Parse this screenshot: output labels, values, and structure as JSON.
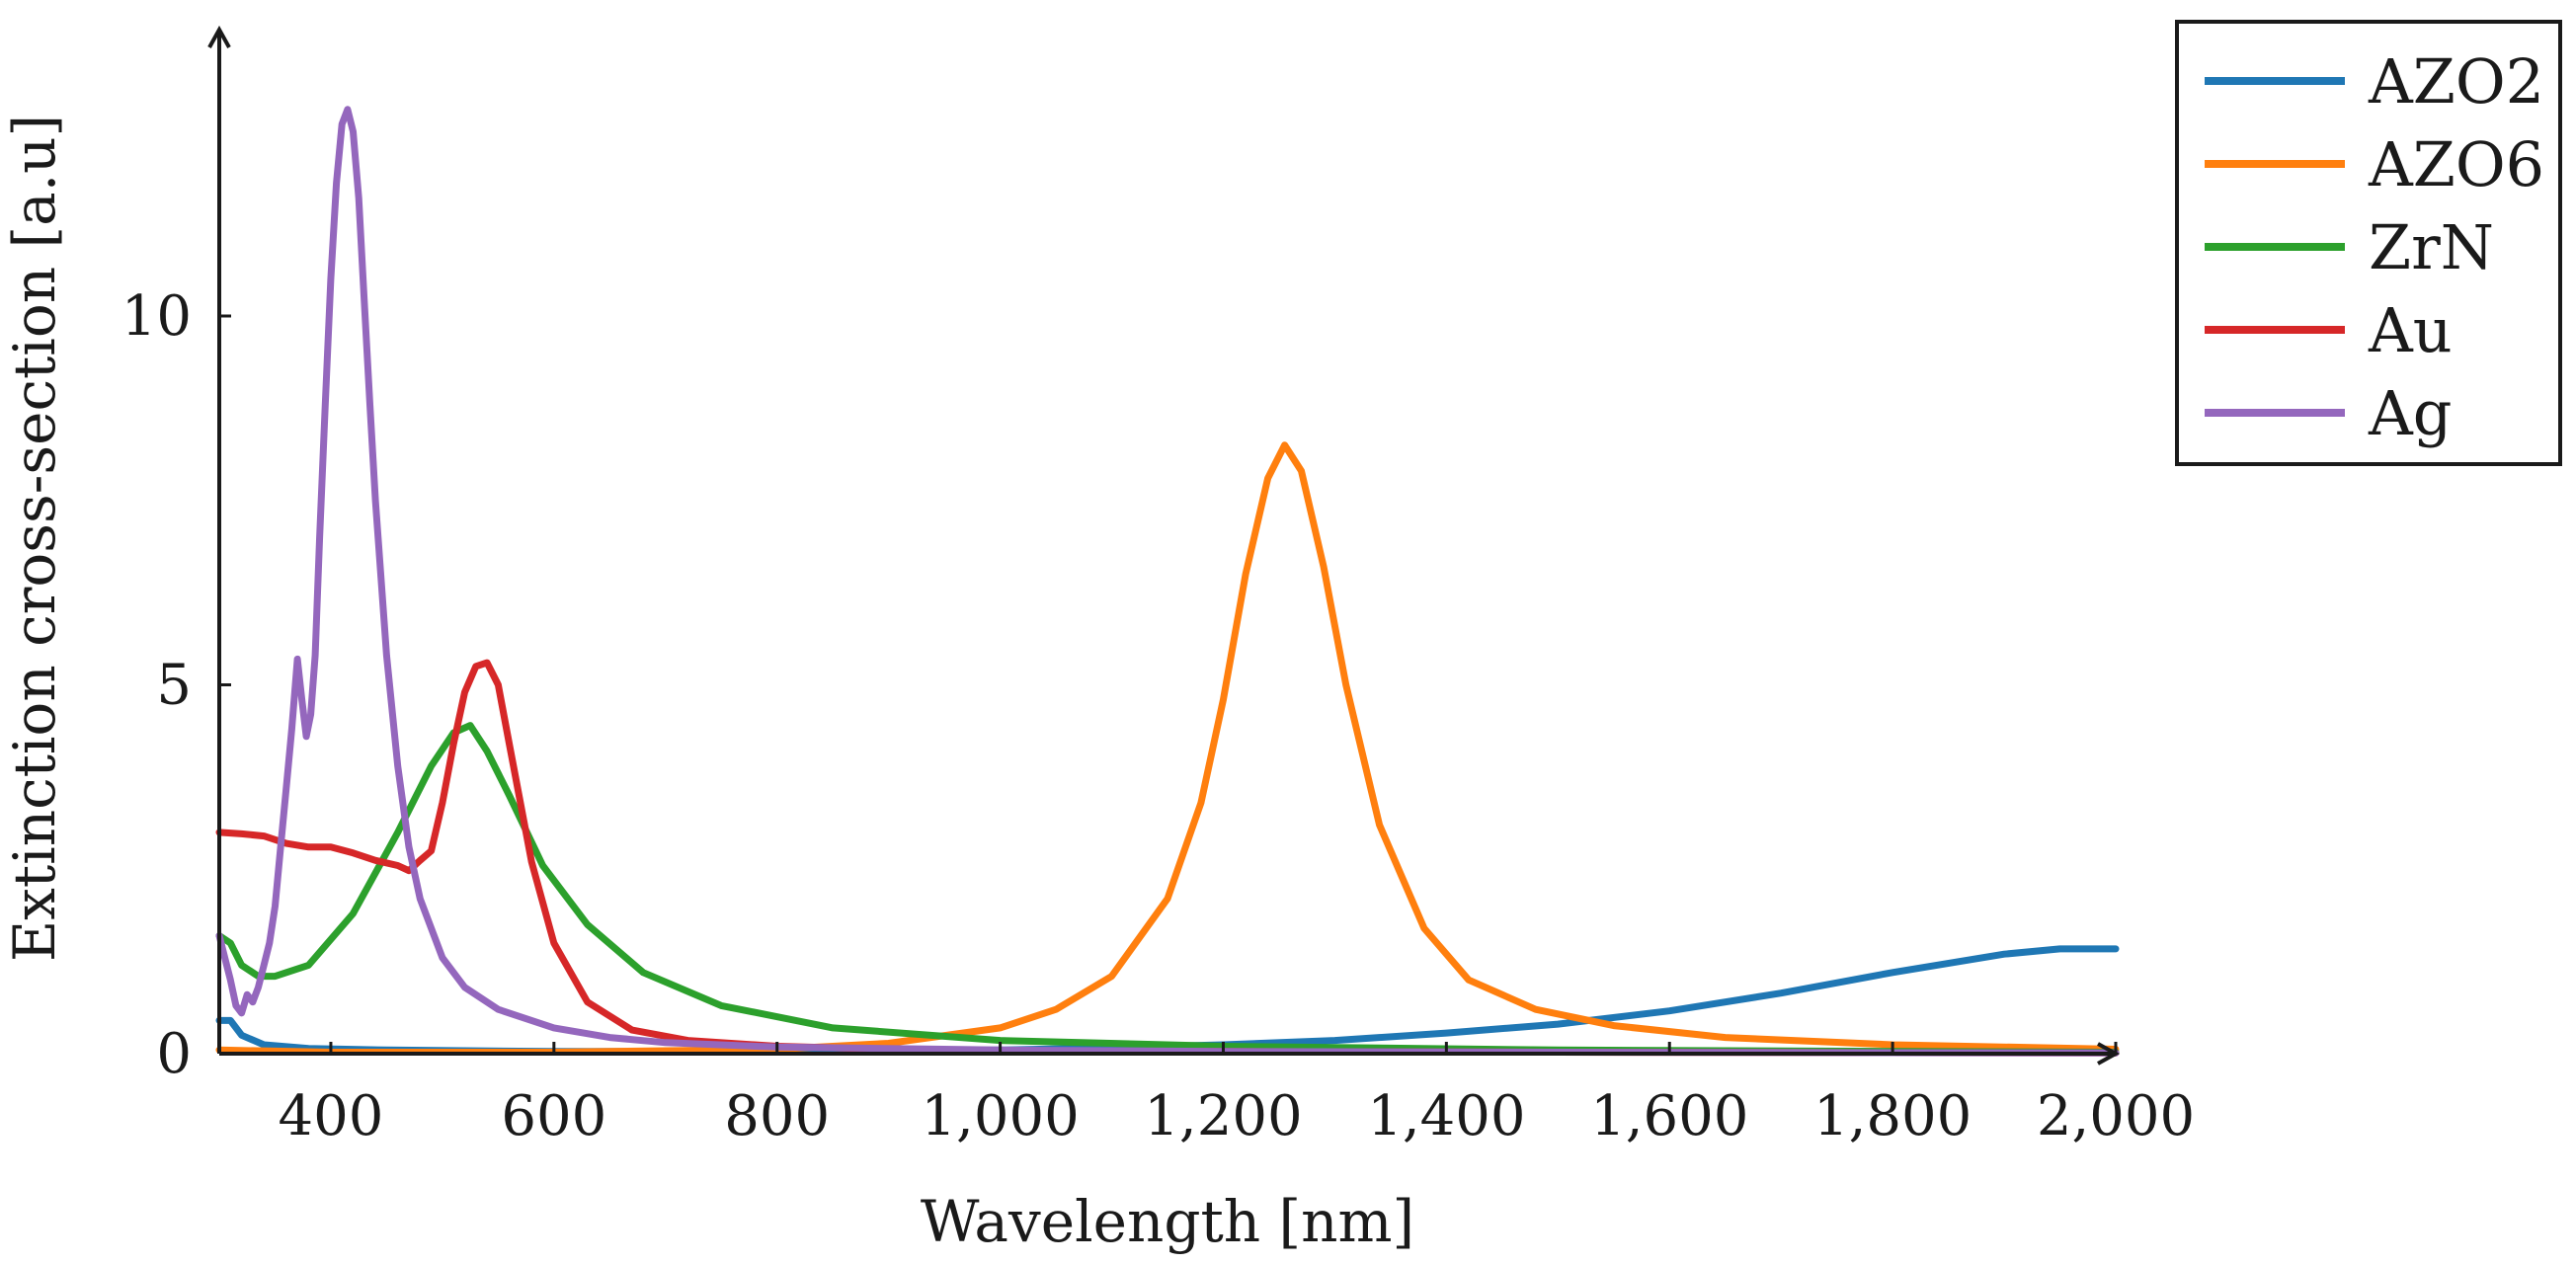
{
  "chart_data": {
    "type": "line",
    "title": "",
    "xlabel": "Wavelength [nm]",
    "ylabel": "Extinction cross-section [a.u]",
    "xlim": [
      300,
      2000
    ],
    "ylim": [
      0,
      13.5
    ],
    "xticks": [
      400,
      600,
      800,
      1000,
      1200,
      1400,
      1600,
      1800,
      2000
    ],
    "xtick_labels": [
      "400",
      "600",
      "800",
      "1,000",
      "1,200",
      "1,400",
      "1,600",
      "1,800",
      "2,000"
    ],
    "yticks": [
      0,
      5,
      10
    ],
    "ytick_labels": [
      "0",
      "5",
      "10"
    ],
    "grid": false,
    "legend_position": "top-right outside",
    "series": [
      {
        "name": "AZO2",
        "color": "#1f77b4",
        "x": [
          300,
          310,
          320,
          340,
          380,
          450,
          600,
          800,
          1000,
          1100,
          1200,
          1300,
          1400,
          1500,
          1600,
          1700,
          1800,
          1900,
          1950,
          2000
        ],
        "y": [
          0.45,
          0.45,
          0.25,
          0.12,
          0.07,
          0.05,
          0.03,
          0.03,
          0.05,
          0.08,
          0.12,
          0.18,
          0.28,
          0.4,
          0.58,
          0.82,
          1.1,
          1.35,
          1.42,
          1.42
        ]
      },
      {
        "name": "AZO6",
        "color": "#ff7f0e",
        "x": [
          300,
          400,
          600,
          800,
          900,
          1000,
          1050,
          1100,
          1150,
          1180,
          1200,
          1220,
          1240,
          1255,
          1270,
          1290,
          1310,
          1340,
          1380,
          1420,
          1480,
          1550,
          1650,
          1800,
          2000
        ],
        "y": [
          0.05,
          0.02,
          0.02,
          0.06,
          0.14,
          0.35,
          0.6,
          1.05,
          2.1,
          3.4,
          4.8,
          6.5,
          7.8,
          8.25,
          7.9,
          6.6,
          5.0,
          3.1,
          1.7,
          1.0,
          0.6,
          0.38,
          0.22,
          0.12,
          0.06
        ]
      },
      {
        "name": "ZrN",
        "color": "#2ca02c",
        "x": [
          300,
          310,
          320,
          335,
          350,
          380,
          420,
          460,
          490,
          510,
          525,
          540,
          560,
          590,
          630,
          680,
          750,
          850,
          1000,
          1200,
          1500,
          2000
        ],
        "y": [
          1.6,
          1.5,
          1.2,
          1.05,
          1.05,
          1.2,
          1.9,
          3.0,
          3.9,
          4.35,
          4.45,
          4.1,
          3.5,
          2.55,
          1.75,
          1.1,
          0.65,
          0.35,
          0.18,
          0.1,
          0.05,
          0.02
        ]
      },
      {
        "name": "Au",
        "color": "#d62728",
        "x": [
          300,
          320,
          340,
          360,
          380,
          400,
          420,
          440,
          460,
          470,
          480,
          490,
          500,
          510,
          520,
          530,
          540,
          550,
          560,
          580,
          600,
          630,
          670,
          720,
          800,
          900,
          1000,
          1200,
          1500,
          2000
        ],
        "y": [
          3.0,
          2.98,
          2.95,
          2.85,
          2.8,
          2.8,
          2.72,
          2.62,
          2.55,
          2.48,
          2.62,
          2.75,
          3.4,
          4.2,
          4.9,
          5.25,
          5.3,
          5.0,
          4.2,
          2.6,
          1.5,
          0.7,
          0.32,
          0.18,
          0.1,
          0.06,
          0.04,
          0.03,
          0.02,
          0.01
        ]
      },
      {
        "name": "Ag",
        "color": "#9467bd",
        "x": [
          300,
          305,
          310,
          315,
          320,
          325,
          330,
          335,
          340,
          345,
          350,
          355,
          360,
          365,
          370,
          374,
          378,
          382,
          386,
          390,
          395,
          400,
          405,
          410,
          415,
          420,
          425,
          430,
          435,
          440,
          450,
          460,
          470,
          480,
          500,
          520,
          550,
          600,
          650,
          700,
          800,
          1000,
          1200,
          1500,
          2000
        ],
        "y": [
          1.6,
          1.3,
          1.0,
          0.65,
          0.55,
          0.8,
          0.7,
          0.9,
          1.2,
          1.5,
          2.0,
          2.8,
          3.6,
          4.4,
          5.35,
          4.8,
          4.3,
          4.6,
          5.4,
          7.0,
          8.8,
          10.5,
          11.8,
          12.6,
          12.8,
          12.5,
          11.6,
          10.2,
          8.8,
          7.5,
          5.4,
          3.9,
          2.8,
          2.1,
          1.3,
          0.9,
          0.6,
          0.35,
          0.22,
          0.15,
          0.09,
          0.05,
          0.03,
          0.02,
          0.01
        ]
      }
    ]
  }
}
